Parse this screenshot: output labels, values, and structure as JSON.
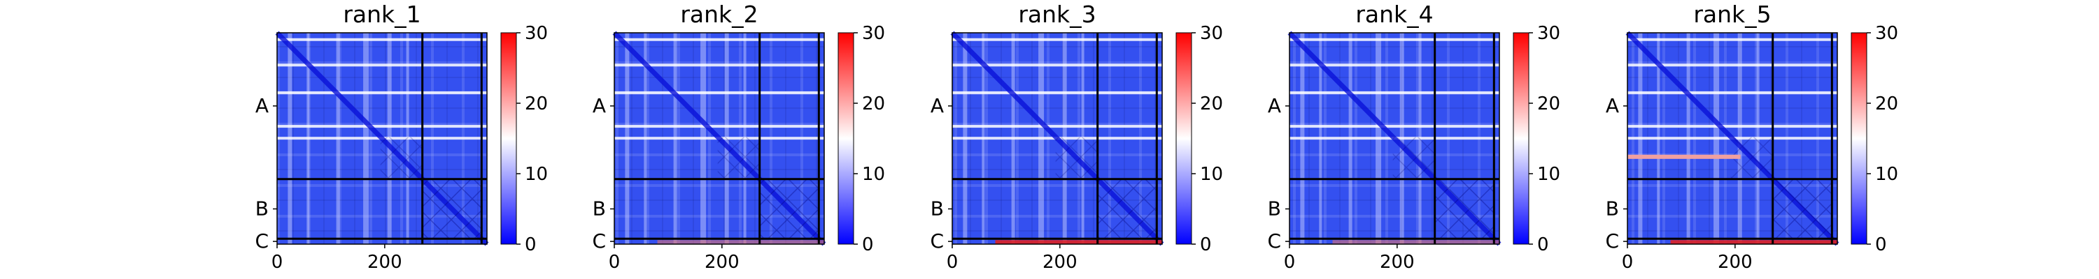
{
  "chart_data": [
    {
      "type": "heatmap",
      "title": "rank_1",
      "x_ticks": [
        0,
        200
      ],
      "y_ticks": [
        "A",
        "B",
        "C"
      ],
      "chain_boundaries": [
        270,
        380
      ],
      "n_residues": 390,
      "colorbar": {
        "ticks": [
          0,
          10,
          20,
          30
        ],
        "vmin": 0,
        "vmax": 30,
        "cmap": "bwr"
      },
      "features": {
        "bright_band_rows": [
          10,
          57,
          108,
          170,
          192
        ],
        "red_band": "none"
      }
    },
    {
      "type": "heatmap",
      "title": "rank_2",
      "x_ticks": [
        0,
        200
      ],
      "y_ticks": [
        "A",
        "B",
        "C"
      ],
      "chain_boundaries": [
        270,
        380
      ],
      "n_residues": 390,
      "colorbar": {
        "ticks": [
          0,
          10,
          20,
          30
        ],
        "vmin": 0,
        "vmax": 30,
        "cmap": "bwr"
      },
      "features": {
        "bright_band_rows": [
          10,
          57,
          108,
          170,
          192
        ],
        "red_band": "weak"
      }
    },
    {
      "type": "heatmap",
      "title": "rank_3",
      "x_ticks": [
        0,
        200
      ],
      "y_ticks": [
        "A",
        "B",
        "C"
      ],
      "chain_boundaries": [
        270,
        380
      ],
      "n_residues": 390,
      "colorbar": {
        "ticks": [
          0,
          10,
          20,
          30
        ],
        "vmin": 0,
        "vmax": 30,
        "cmap": "bwr"
      },
      "features": {
        "bright_band_rows": [
          10,
          57,
          108,
          170,
          192
        ],
        "red_band": "strong"
      }
    },
    {
      "type": "heatmap",
      "title": "rank_4",
      "x_ticks": [
        0,
        200
      ],
      "y_ticks": [
        "A",
        "B",
        "C"
      ],
      "chain_boundaries": [
        270,
        380
      ],
      "n_residues": 390,
      "colorbar": {
        "ticks": [
          0,
          10,
          20,
          30
        ],
        "vmin": 0,
        "vmax": 30,
        "cmap": "bwr"
      },
      "features": {
        "bright_band_rows": [
          10,
          57,
          108,
          170,
          192
        ],
        "red_band": "weak"
      }
    },
    {
      "type": "heatmap",
      "title": "rank_5",
      "x_ticks": [
        0,
        200
      ],
      "y_ticks": [
        "A",
        "B",
        "C"
      ],
      "chain_boundaries": [
        270,
        380
      ],
      "n_residues": 390,
      "colorbar": {
        "ticks": [
          0,
          10,
          20,
          30
        ],
        "vmin": 0,
        "vmax": 30,
        "cmap": "bwr"
      },
      "features": {
        "bright_band_rows": [
          10,
          57,
          108,
          170,
          192
        ],
        "red_band": "strong",
        "hot_row": 225
      }
    }
  ]
}
